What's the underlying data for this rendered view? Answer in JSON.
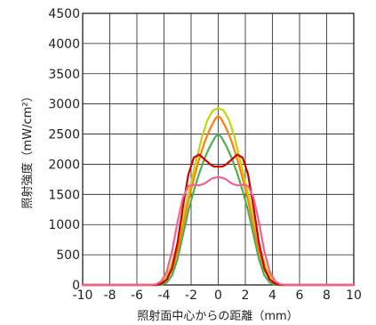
{
  "chart_data": {
    "type": "line",
    "title": "",
    "xlabel": "照射面中心からの距離（mm）",
    "ylabel": "照射強度（mW/cm²）",
    "xlim": [
      -10,
      10
    ],
    "ylim": [
      0,
      4500
    ],
    "x_ticks": [
      -10,
      -8,
      -6,
      -4,
      -2,
      0,
      2,
      4,
      6,
      8,
      10
    ],
    "y_ticks": [
      0,
      500,
      1000,
      1500,
      2000,
      2500,
      3000,
      3500,
      4000,
      4500
    ],
    "grid": true,
    "legend": "none",
    "series": [
      {
        "color": "#4caf50",
        "x": [
          -10,
          -4.6,
          -4.2,
          -3.8,
          -3.4,
          -3.0,
          -2.6,
          -2.2,
          -1.8,
          -1.4,
          -1.0,
          -0.6,
          -0.2,
          0,
          0.2,
          0.6,
          1.0,
          1.4,
          1.8,
          2.2,
          2.6,
          3.0,
          3.4,
          3.8,
          4.2,
          4.6,
          10
        ],
        "y": [
          0,
          0,
          0,
          40,
          160,
          430,
          830,
          1230,
          1560,
          1850,
          2100,
          2300,
          2460,
          2490,
          2460,
          2300,
          2100,
          1850,
          1560,
          1230,
          830,
          430,
          160,
          40,
          0,
          0,
          0
        ]
      },
      {
        "color": "#ff7f0e",
        "x": [
          -10,
          -4.6,
          -4.2,
          -3.8,
          -3.4,
          -3.0,
          -2.6,
          -2.2,
          -1.8,
          -1.4,
          -1.0,
          -0.6,
          -0.2,
          0,
          0.2,
          0.6,
          1.0,
          1.4,
          1.8,
          2.2,
          2.6,
          3.0,
          3.4,
          3.8,
          4.2,
          4.6,
          10
        ],
        "y": [
          0,
          0,
          20,
          90,
          250,
          560,
          980,
          1400,
          1760,
          2090,
          2370,
          2590,
          2760,
          2800,
          2760,
          2590,
          2370,
          2090,
          1760,
          1400,
          980,
          560,
          250,
          90,
          20,
          0,
          0
        ]
      },
      {
        "color": "#c5d20f",
        "x": [
          -10,
          -4.8,
          -4.4,
          -4.0,
          -3.6,
          -3.2,
          -2.8,
          -2.4,
          -2.0,
          -1.6,
          -1.2,
          -0.8,
          -0.4,
          0,
          0.4,
          0.8,
          1.2,
          1.6,
          2.0,
          2.4,
          2.8,
          3.2,
          3.6,
          4.0,
          4.4,
          4.8,
          10
        ],
        "y": [
          0,
          0,
          20,
          90,
          240,
          520,
          900,
          1320,
          1700,
          2080,
          2450,
          2730,
          2890,
          2930,
          2890,
          2730,
          2450,
          2080,
          1700,
          1320,
          900,
          520,
          240,
          90,
          20,
          0,
          0
        ]
      },
      {
        "color": "#cc0000",
        "x": [
          -10,
          -4.6,
          -4.2,
          -3.8,
          -3.4,
          -3.0,
          -2.6,
          -2.2,
          -1.8,
          -1.4,
          -1.0,
          -0.6,
          -0.3,
          0,
          0.3,
          0.6,
          1.0,
          1.4,
          1.8,
          2.2,
          2.6,
          3.0,
          3.4,
          3.8,
          4.2,
          4.6,
          10
        ],
        "y": [
          0,
          0,
          20,
          90,
          280,
          700,
          1300,
          1830,
          2110,
          2160,
          2080,
          2000,
          1960,
          1960,
          1960,
          2000,
          2080,
          2160,
          2110,
          1830,
          1300,
          700,
          280,
          90,
          20,
          0,
          0
        ]
      },
      {
        "color": "#f06292",
        "x": [
          -10,
          -5.0,
          -4.6,
          -4.2,
          -3.8,
          -3.4,
          -3.0,
          -2.6,
          -2.2,
          -1.8,
          -1.4,
          -1.0,
          -0.5,
          0,
          0.5,
          1.0,
          1.4,
          1.8,
          2.2,
          2.6,
          3.0,
          3.4,
          3.8,
          4.2,
          4.6,
          5.0,
          10
        ],
        "y": [
          0,
          0,
          10,
          60,
          220,
          560,
          1050,
          1450,
          1640,
          1660,
          1650,
          1680,
          1760,
          1790,
          1760,
          1680,
          1650,
          1660,
          1640,
          1450,
          1050,
          560,
          220,
          60,
          10,
          0,
          0
        ]
      }
    ]
  }
}
